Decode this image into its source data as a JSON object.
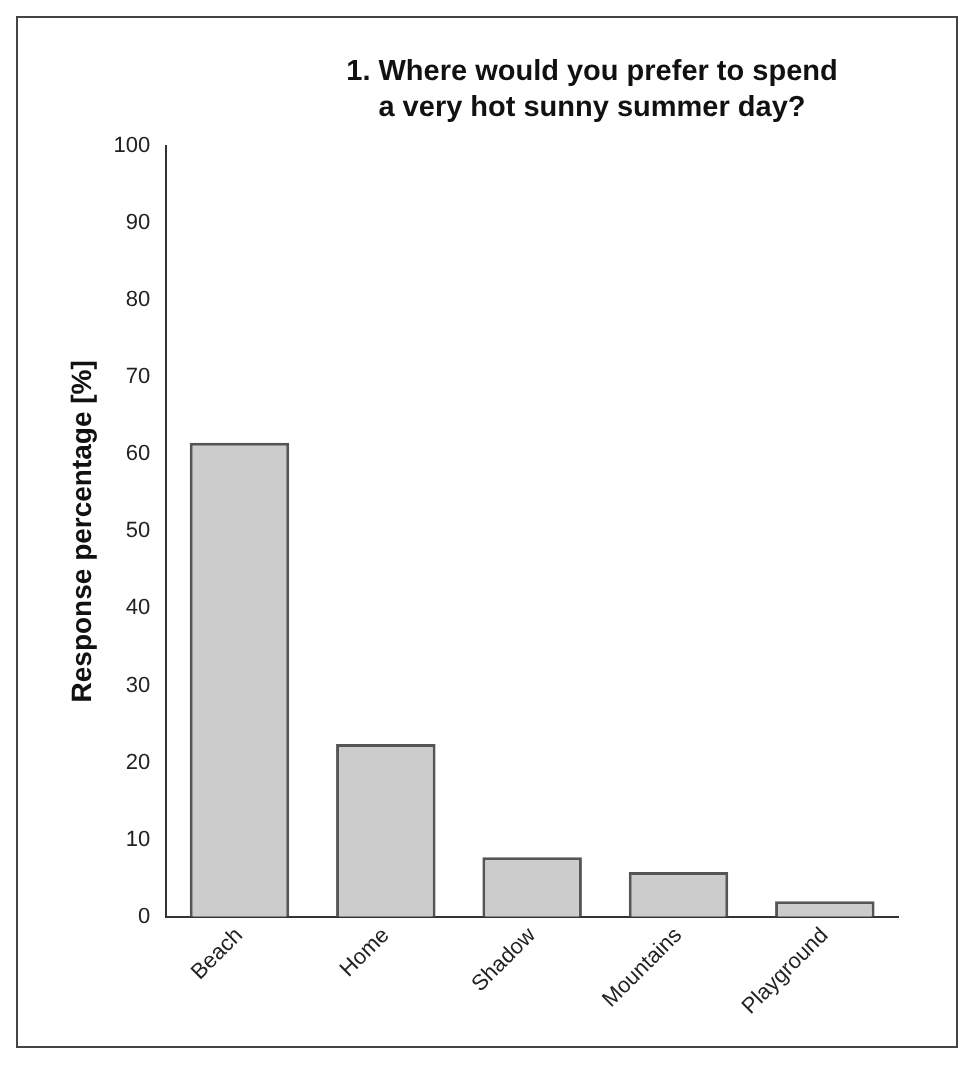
{
  "chart_data": {
    "type": "bar",
    "title": "1. Where would you prefer to spend a very hot sunny summer day?",
    "ylabel": "Response percentage [%]",
    "categories": [
      "Beach",
      "Home",
      "Shadow",
      "Mountains",
      "Playground"
    ],
    "values": [
      61.5,
      22.4,
      7.7,
      5.8,
      2.0
    ],
    "color": "#cccccc",
    "ylim": [
      0,
      100
    ],
    "yticks": [
      0,
      10,
      20,
      30,
      40,
      50,
      60,
      70,
      80,
      90,
      100
    ],
    "grid": false
  }
}
